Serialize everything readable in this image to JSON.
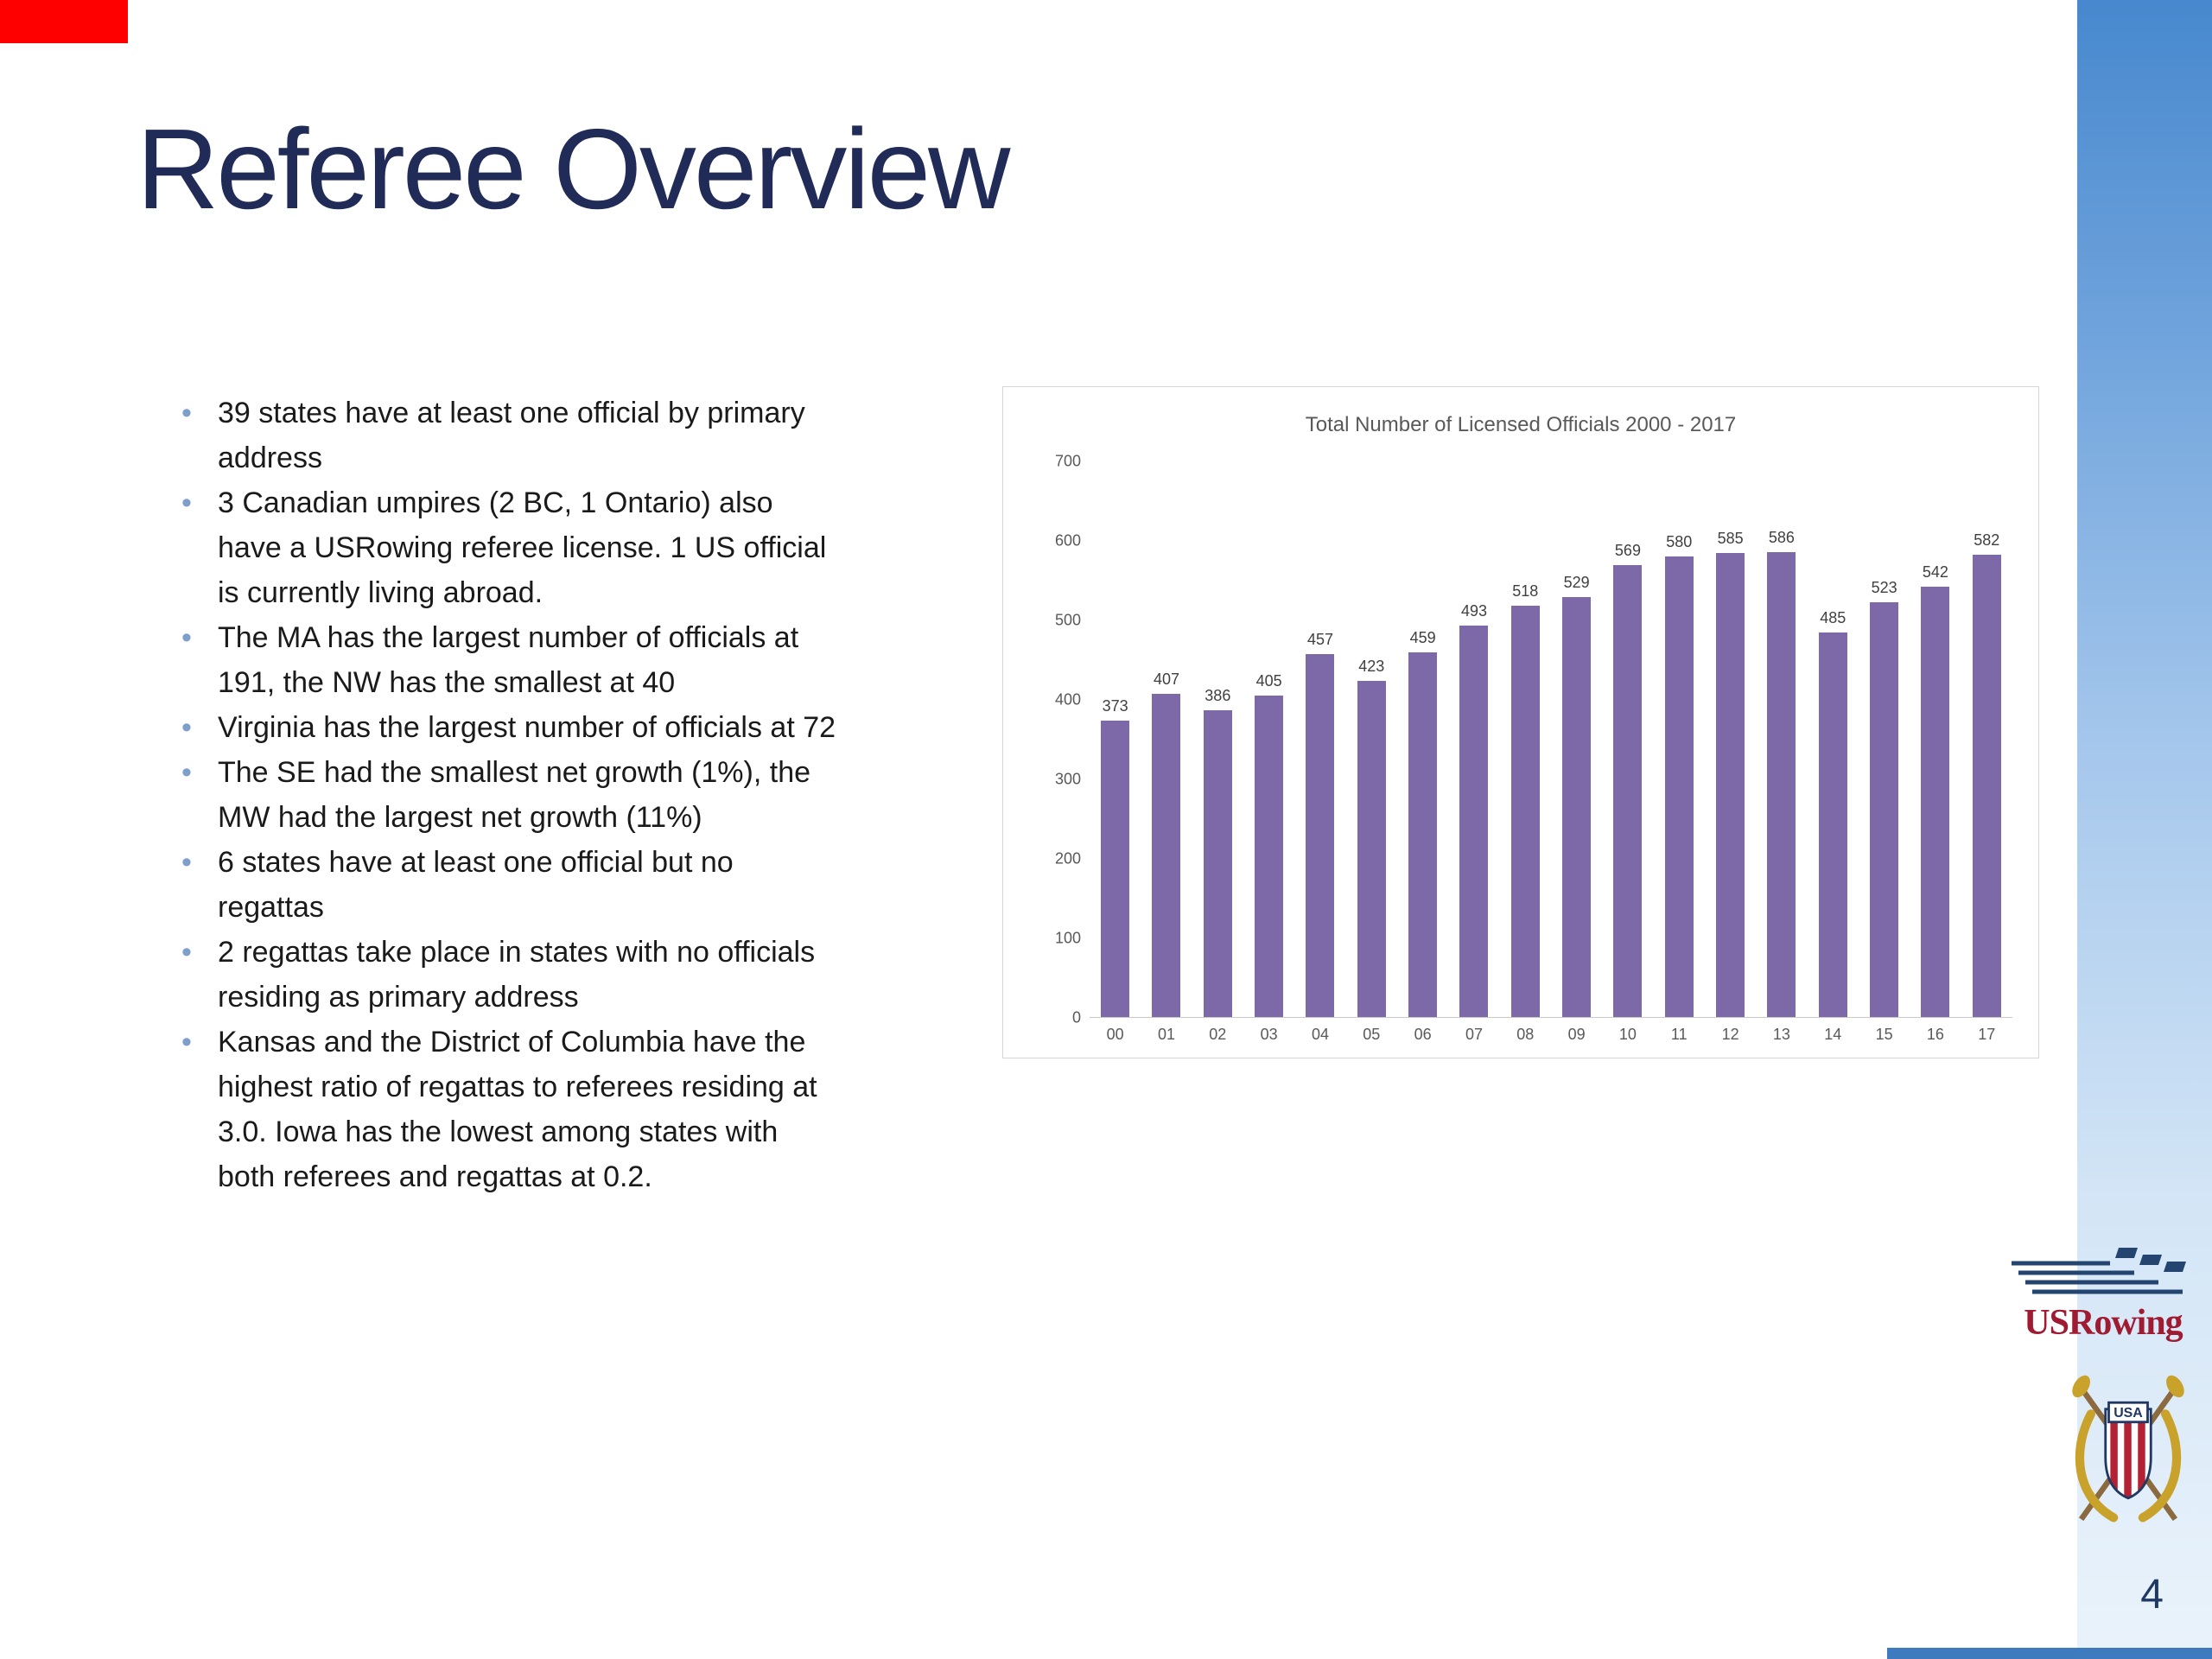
{
  "slide": {
    "title": "Referee Overview",
    "page_number": "4",
    "bullets": [
      "39 states have at least one official by primary address",
      "3 Canadian umpires (2 BC, 1 Ontario) also have a USRowing referee license. 1 US official is currently living abroad.",
      "The MA has the largest number of officials at 191, the NW has the smallest at 40",
      "Virginia has the largest number of officials at 72",
      "The SE had the smallest net growth (1%), the MW had the largest net growth (11%)",
      "6 states have at least one official but no regattas",
      "2 regattas take place in states with no officials residing as primary address",
      "Kansas and the District of Columbia have the highest ratio of regattas to referees residing at 3.0.  Iowa has the lowest among states with both referees and regattas at 0.2."
    ]
  },
  "chart_data": {
    "type": "bar",
    "title": "Total Number of Licensed Officials 2000 - 2017",
    "categories": [
      "00",
      "01",
      "02",
      "03",
      "04",
      "05",
      "06",
      "07",
      "08",
      "09",
      "10",
      "11",
      "12",
      "13",
      "14",
      "15",
      "16",
      "17"
    ],
    "values": [
      373,
      407,
      386,
      405,
      457,
      423,
      459,
      493,
      518,
      529,
      569,
      580,
      585,
      586,
      485,
      523,
      542,
      582
    ],
    "xlabel": "",
    "ylabel": "",
    "ylim": [
      0,
      700
    ],
    "y_ticks": [
      0,
      100,
      200,
      300,
      400,
      500,
      600,
      700
    ],
    "bar_color": "#7D68A8",
    "grid": false,
    "legend": false,
    "value_labels": true
  },
  "logos": {
    "usrowing_wordmark": "USRowing",
    "crest_text": "USA"
  },
  "colors": {
    "title": "#212B57",
    "bullet_dot": "#7E9FC9",
    "stripe_top": "#4788CE",
    "page_number": "#1F3864",
    "bottom_bar": "#3E7BBE",
    "corner_accent": "#FE0000",
    "bar": "#7D68A8"
  }
}
